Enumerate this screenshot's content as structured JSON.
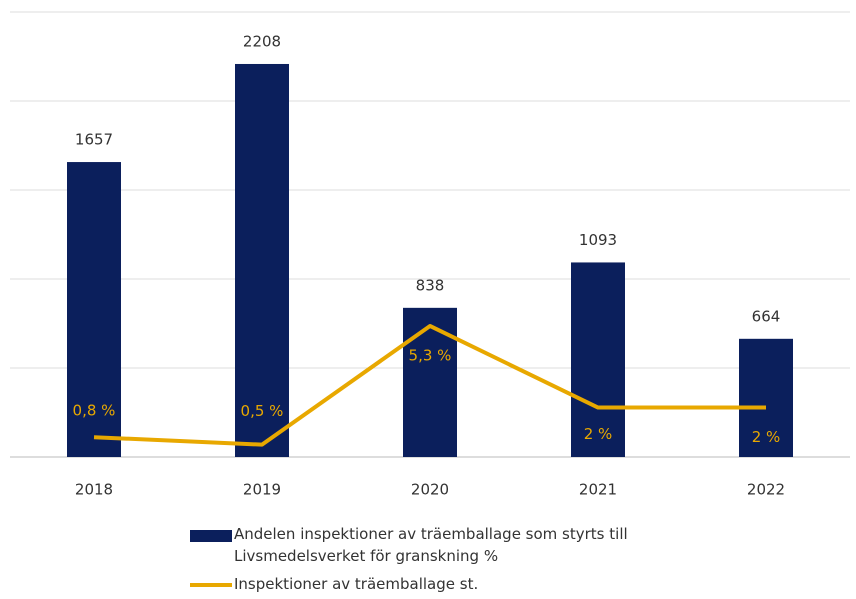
{
  "chart_data": {
    "type": "bar_line",
    "categories": [
      "2018",
      "2019",
      "2020",
      "2021",
      "2022"
    ],
    "series": [
      {
        "name": "Andelen inspektioner av träemballage som styrts till Livsmedelsverket för granskning %",
        "type": "bar",
        "color": "#0b1f5c",
        "values": [
          1657,
          2208,
          838,
          1093,
          664
        ]
      },
      {
        "name": "Inspektioner av träemballage st.",
        "type": "line",
        "axis": "y2",
        "color": "#e8a800",
        "values": [
          0.8,
          0.5,
          5.3,
          2,
          2
        ],
        "value_labels": [
          "0,8 %",
          "0,5 %",
          "5,3 %",
          "2 %",
          "2 %"
        ]
      }
    ],
    "ylim": [
      0,
      2500
    ],
    "yticks": [
      0,
      500,
      1000,
      1500,
      2000,
      2500
    ],
    "y2lim": [
      0,
      18
    ],
    "grid": true
  }
}
